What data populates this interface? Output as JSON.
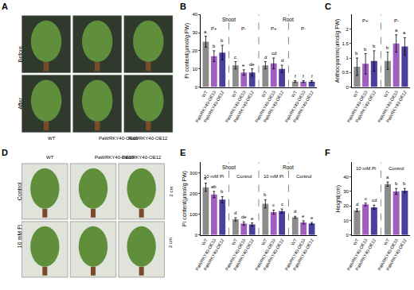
{
  "images": [
    {
      "panel": "A",
      "row_labels": [
        "Before",
        "After"
      ],
      "column_labels": [
        "WT",
        "PaWRKY40-OE10",
        "PaWRKY40-OE12"
      ]
    },
    {
      "panel": "D",
      "row_labels": [
        "Control",
        "10 mM Pi"
      ],
      "column_labels": [
        "WT",
        "PaWRKY40-OE10",
        "PaWRKY40-OE12"
      ],
      "scale_bar": "2 cm"
    }
  ],
  "chart_data": [
    {
      "panel": "B",
      "type": "bar",
      "y_label": "Pi content(μmol/g FW)",
      "ylim": [
        0,
        40
      ],
      "yticks": [
        0,
        10,
        20,
        30,
        40
      ],
      "grid": false,
      "groups": [
        {
          "label": "Shoot",
          "subgroups": [
            {
              "label": "P+",
              "categories": [
                "WT",
                "PaWRKY40-OE10",
                "PaWRKY40-OE12"
              ],
              "values": [
                25,
                17,
                19
              ],
              "errors": [
                3,
                3,
                4
              ],
              "letters": [
                "a",
                "b",
                "b"
              ],
              "colors": [
                "#8c8c8c",
                "#a05fc0",
                "#4b3f9e"
              ]
            },
            {
              "label": "P-",
              "categories": [
                "WT",
                "PaWRKY40-OE10",
                "PaWRKY40-OE12"
              ],
              "values": [
                12,
                8,
                8
              ],
              "errors": [
                2,
                1.5,
                2
              ],
              "letters": [
                "c",
                "e",
                "de"
              ],
              "colors": [
                "#8c8c8c",
                "#a05fc0",
                "#4b3f9e"
              ]
            }
          ]
        },
        {
          "label": "Root",
          "subgroups": [
            {
              "label": "P+",
              "categories": [
                "WT",
                "PaWRKY40-OE10",
                "PaWRKY40-OE12"
              ],
              "values": [
                12,
                13,
                10
              ],
              "errors": [
                2,
                3,
                2
              ],
              "letters": [
                "d",
                "cd",
                "d"
              ],
              "colors": [
                "#8c8c8c",
                "#a05fc0",
                "#4b3f9e"
              ]
            },
            {
              "label": "P-",
              "categories": [
                "WT",
                "PaWRKY40-OE10",
                "PaWRKY40-OE12"
              ],
              "values": [
                3,
                3,
                3
              ],
              "errors": [
                0.5,
                0.5,
                0.5
              ],
              "letters": [
                "f",
                "f",
                "f"
              ],
              "colors": [
                "#8c8c8c",
                "#a05fc0",
                "#4b3f9e"
              ]
            }
          ]
        }
      ]
    },
    {
      "panel": "C",
      "type": "bar",
      "y_label": "Anthocyanins(umol/g FW)",
      "ylim": [
        0,
        2.5
      ],
      "yticks": [
        0,
        0.5,
        1,
        1.5,
        2
      ],
      "grid": false,
      "groups": [
        {
          "subgroups": [
            {
              "label": "P+",
              "categories": [
                "WT",
                "PaWRKY40-OE10",
                "PaWRKY40-OE12"
              ],
              "values": [
                0.7,
                0.8,
                0.9
              ],
              "errors": [
                0.3,
                0.35,
                0.35
              ],
              "letters": [
                "b",
                "b",
                "b"
              ],
              "colors": [
                "#8c8c8c",
                "#a05fc0",
                "#4b3f9e"
              ]
            },
            {
              "label": "P-",
              "categories": [
                "WT",
                "PaWRKY40-OE10",
                "PaWRKY40-OE12"
              ],
              "values": [
                0.9,
                1.5,
                1.4
              ],
              "errors": [
                0.3,
                0.3,
                0.3
              ],
              "letters": [
                "b",
                "a",
                "a"
              ],
              "colors": [
                "#8c8c8c",
                "#a05fc0",
                "#4b3f9e"
              ]
            }
          ]
        }
      ]
    },
    {
      "panel": "E",
      "type": "bar",
      "y_label": "Pi content(μmol/g FW)",
      "ylim": [
        0,
        350
      ],
      "yticks": [
        0,
        100,
        200,
        300
      ],
      "grid": false,
      "groups": [
        {
          "label": "Shoot",
          "subgroups": [
            {
              "label": "10 mM Pi",
              "categories": [
                "WT",
                "PaWRKY40-OE10",
                "PaWRKY40-OE12"
              ],
              "values": [
                230,
                195,
                170
              ],
              "errors": [
                20,
                15,
                15
              ],
              "letters": [
                "a",
                "ab",
                "b"
              ],
              "colors": [
                "#8c8c8c",
                "#a05fc0",
                "#4b3f9e"
              ]
            },
            {
              "label": "Control",
              "categories": [
                "WT",
                "PaWRKY40-OE10",
                "PaWRKY40-OE12"
              ],
              "values": [
                75,
                55,
                50
              ],
              "errors": [
                8,
                8,
                8
              ],
              "letters": [
                "d",
                "de",
                "e"
              ],
              "colors": [
                "#8c8c8c",
                "#a05fc0",
                "#4b3f9e"
              ]
            }
          ]
        },
        {
          "label": "Root",
          "subgroups": [
            {
              "label": "10 mM Pi",
              "categories": [
                "WT",
                "PaWRKY40-OE10",
                "PaWRKY40-OE12"
              ],
              "values": [
                150,
                110,
                115
              ],
              "errors": [
                20,
                10,
                10
              ],
              "letters": [
                "b",
                "c",
                "c"
              ],
              "colors": [
                "#8c8c8c",
                "#a05fc0",
                "#4b3f9e"
              ]
            },
            {
              "label": "Control",
              "categories": [
                "WT",
                "PaWRKY40-OE10",
                "PaWRKY40-OE12"
              ],
              "values": [
                85,
                60,
                55
              ],
              "errors": [
                5,
                8,
                5
              ],
              "letters": [
                "d",
                "e",
                "e"
              ],
              "colors": [
                "#8c8c8c",
                "#a05fc0",
                "#4b3f9e"
              ]
            }
          ]
        }
      ]
    },
    {
      "panel": "F",
      "type": "bar",
      "y_label": "Height(cm)",
      "ylim": [
        0,
        50
      ],
      "yticks": [
        0,
        10,
        20,
        30,
        40
      ],
      "grid": false,
      "groups": [
        {
          "subgroups": [
            {
              "label": "10 mM Pi",
              "categories": [
                "WT",
                "PaWRKY40-OE10",
                "PaWRKY40-OE12"
              ],
              "values": [
                17,
                21,
                19
              ],
              "errors": [
                1,
                1,
                1.5
              ],
              "letters": [
                "d",
                "c",
                "cd"
              ],
              "colors": [
                "#8c8c8c",
                "#a05fc0",
                "#4b3f9e"
              ]
            },
            {
              "label": "Control",
              "categories": [
                "WT",
                "PaWRKY40-OE10",
                "PaWRKY40-OE12"
              ],
              "values": [
                35,
                30,
                30.5
              ],
              "errors": [
                1.5,
                2,
                1.5
              ],
              "letters": [
                "a",
                "b",
                "b"
              ],
              "colors": [
                "#8c8c8c",
                "#a05fc0",
                "#4b3f9e"
              ]
            }
          ]
        }
      ]
    }
  ]
}
